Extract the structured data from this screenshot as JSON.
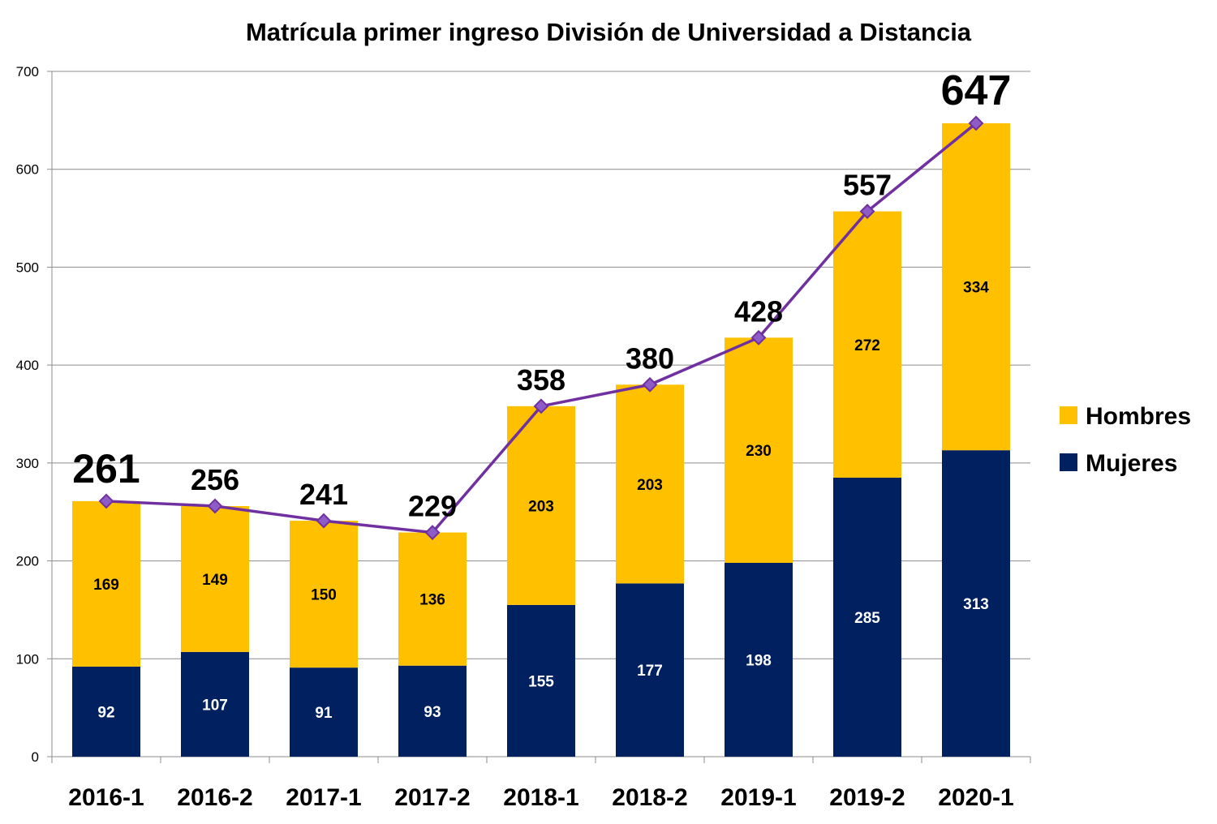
{
  "chart_data": {
    "type": "bar",
    "stacked": true,
    "title": "Matrícula primer ingreso División de Universidad a Distancia",
    "xlabel": "",
    "ylabel": "",
    "categories": [
      "2016-1",
      "2016-2",
      "2017-1",
      "2017-2",
      "2018-1",
      "2018-2",
      "2019-1",
      "2019-2",
      "2020-1"
    ],
    "series": [
      {
        "name": "Mujeres",
        "color": "#002060",
        "label_color": "#ffffff",
        "values": [
          92,
          107,
          91,
          93,
          155,
          177,
          198,
          285,
          313
        ]
      },
      {
        "name": "Hombres",
        "color": "#FFC000",
        "label_color": "#000000",
        "values": [
          169,
          149,
          150,
          136,
          203,
          203,
          230,
          272,
          334
        ]
      }
    ],
    "totals": {
      "type": "line",
      "color": "#7030A0",
      "marker": "diamond",
      "values": [
        261,
        256,
        241,
        229,
        358,
        380,
        428,
        557,
        647
      ]
    },
    "ylim": [
      0,
      700
    ],
    "yticks": [
      0,
      100,
      200,
      300,
      400,
      500,
      600,
      700
    ],
    "grid": true,
    "legend_position": "right",
    "legend_order": [
      "Hombres",
      "Mujeres"
    ]
  }
}
